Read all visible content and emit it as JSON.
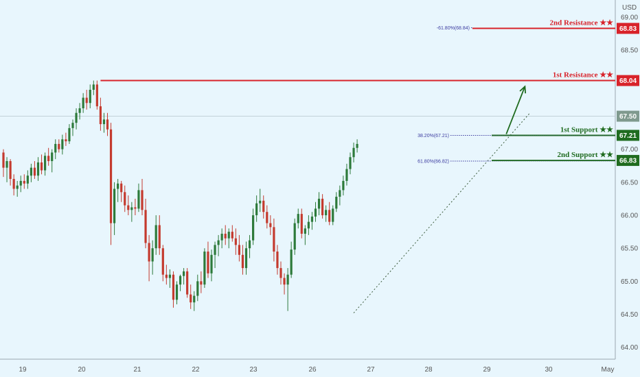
{
  "chart_data": {
    "type": "candlestick",
    "currency": "USD",
    "y_ticks": [
      "64.00",
      "64.50",
      "65.00",
      "65.50",
      "66.00",
      "66.50",
      "67.00",
      "67.50",
      "68.00",
      "68.50",
      "69.00"
    ],
    "x_labels": [
      "19",
      "20",
      "21",
      "22",
      "23",
      "26",
      "27",
      "28",
      "29",
      "30",
      "May"
    ],
    "ylim": [
      63.82,
      69.26
    ],
    "last_price": {
      "value": 67.5,
      "label": "67.50"
    },
    "levels": [
      {
        "label": "2nd Resistance ★★",
        "value": 68.83,
        "tag": "68.83",
        "color": "#d8232a",
        "fib": {
          "text": "-61.80%(68.84)",
          "value": 68.84
        }
      },
      {
        "label": "1st Resistance ★★",
        "value": 68.04,
        "tag": "68.04",
        "color": "#d8232a",
        "from_index": 28
      },
      {
        "label": "1st Support ★★",
        "value": 67.21,
        "tag": "67.21",
        "color": "#1f6b1f",
        "fib": {
          "text": "38.20%(67.21)",
          "value": 67.21
        }
      },
      {
        "label": "2nd Support ★★",
        "value": 66.83,
        "tag": "66.83",
        "color": "#1f6b1f",
        "fib": {
          "text": "61.80%(66.82)",
          "value": 66.82
        }
      }
    ],
    "trendline": {
      "from": [
        101,
        64.52
      ],
      "to": [
        152,
        67.56
      ]
    },
    "arrow": {
      "from": [
        145,
        67.23
      ],
      "to": [
        148,
        67.95
      ]
    },
    "candles": [
      [
        66.95,
        67.0,
        66.58,
        66.72
      ],
      [
        66.72,
        66.88,
        66.5,
        66.82
      ],
      [
        66.82,
        66.85,
        66.45,
        66.55
      ],
      [
        66.55,
        66.62,
        66.3,
        66.4
      ],
      [
        66.4,
        66.52,
        66.28,
        66.45
      ],
      [
        66.45,
        66.6,
        66.35,
        66.52
      ],
      [
        66.52,
        66.62,
        66.4,
        66.48
      ],
      [
        66.48,
        66.68,
        66.4,
        66.6
      ],
      [
        66.6,
        66.78,
        66.5,
        66.72
      ],
      [
        66.72,
        66.82,
        66.55,
        66.6
      ],
      [
        66.6,
        66.88,
        66.52,
        66.8
      ],
      [
        66.8,
        66.92,
        66.62,
        66.68
      ],
      [
        66.68,
        66.95,
        66.6,
        66.9
      ],
      [
        66.9,
        67.02,
        66.75,
        66.82
      ],
      [
        66.82,
        67.0,
        66.65,
        66.95
      ],
      [
        66.95,
        67.15,
        66.85,
        67.08
      ],
      [
        67.08,
        67.15,
        66.95,
        67.0
      ],
      [
        67.0,
        67.22,
        66.92,
        67.15
      ],
      [
        67.15,
        67.25,
        67.05,
        67.12
      ],
      [
        67.12,
        67.38,
        67.08,
        67.32
      ],
      [
        67.32,
        67.45,
        67.2,
        67.4
      ],
      [
        67.4,
        67.62,
        67.3,
        67.55
      ],
      [
        67.55,
        67.7,
        67.45,
        67.62
      ],
      [
        67.62,
        67.85,
        67.55,
        67.78
      ],
      [
        67.78,
        67.9,
        67.6,
        67.7
      ],
      [
        67.7,
        67.98,
        67.62,
        67.9
      ],
      [
        67.9,
        68.04,
        67.82,
        67.98
      ],
      [
        67.98,
        68.04,
        67.6,
        67.65
      ],
      [
        67.65,
        67.78,
        67.28,
        67.38
      ],
      [
        67.38,
        67.55,
        67.25,
        67.45
      ],
      [
        67.45,
        67.55,
        67.2,
        67.3
      ],
      [
        67.3,
        67.4,
        65.55,
        65.88
      ],
      [
        65.88,
        66.5,
        65.7,
        66.4
      ],
      [
        66.4,
        66.55,
        66.2,
        66.48
      ],
      [
        66.48,
        66.52,
        66.2,
        66.35
      ],
      [
        66.35,
        66.45,
        66.05,
        66.15
      ],
      [
        66.15,
        66.3,
        66.0,
        66.08
      ],
      [
        66.08,
        66.2,
        65.9,
        66.12
      ],
      [
        66.12,
        66.25,
        66.0,
        66.1
      ],
      [
        66.1,
        66.48,
        66.05,
        66.38
      ],
      [
        66.38,
        66.55,
        66.0,
        66.08
      ],
      [
        66.08,
        66.25,
        65.5,
        65.58
      ],
      [
        65.58,
        65.7,
        65.0,
        65.3
      ],
      [
        65.3,
        65.62,
        65.1,
        65.5
      ],
      [
        65.5,
        66.0,
        65.4,
        65.85
      ],
      [
        65.85,
        66.0,
        65.4,
        65.5
      ],
      [
        65.5,
        65.55,
        65.0,
        65.1
      ],
      [
        65.1,
        65.25,
        64.95,
        65.05
      ],
      [
        65.05,
        65.18,
        64.9,
        65.1
      ],
      [
        65.1,
        65.15,
        64.6,
        64.72
      ],
      [
        64.72,
        65.0,
        64.65,
        64.95
      ],
      [
        64.95,
        65.1,
        64.85,
        65.08
      ],
      [
        65.08,
        65.2,
        64.95,
        65.15
      ],
      [
        65.15,
        65.2,
        64.75,
        64.8
      ],
      [
        64.8,
        64.95,
        64.58,
        64.68
      ],
      [
        64.68,
        64.85,
        64.55,
        64.78
      ],
      [
        64.78,
        65.1,
        64.7,
        65.0
      ],
      [
        65.0,
        65.15,
        64.82,
        64.95
      ],
      [
        64.95,
        65.5,
        64.9,
        65.45
      ],
      [
        65.45,
        65.6,
        65.05,
        65.12
      ],
      [
        65.12,
        65.48,
        65.0,
        65.4
      ],
      [
        65.4,
        65.6,
        65.2,
        65.55
      ],
      [
        65.55,
        65.7,
        65.38,
        65.62
      ],
      [
        65.62,
        65.8,
        65.5,
        65.72
      ],
      [
        65.72,
        65.85,
        65.55,
        65.65
      ],
      [
        65.65,
        65.8,
        65.5,
        65.75
      ],
      [
        65.75,
        65.85,
        65.6,
        65.65
      ],
      [
        65.65,
        65.8,
        65.4,
        65.55
      ],
      [
        65.55,
        65.7,
        65.3,
        65.4
      ],
      [
        65.4,
        65.55,
        65.1,
        65.2
      ],
      [
        65.2,
        65.6,
        65.1,
        65.5
      ],
      [
        65.5,
        65.7,
        65.35,
        65.62
      ],
      [
        65.62,
        66.1,
        65.55,
        66.0
      ],
      [
        66.0,
        66.3,
        65.9,
        66.18
      ],
      [
        66.18,
        66.4,
        66.05,
        66.22
      ],
      [
        66.22,
        66.3,
        65.95,
        66.05
      ],
      [
        66.05,
        66.15,
        65.8,
        65.88
      ],
      [
        65.88,
        66.0,
        65.7,
        65.82
      ],
      [
        65.82,
        65.95,
        65.3,
        65.45
      ],
      [
        65.45,
        65.55,
        65.1,
        65.2
      ],
      [
        65.2,
        65.3,
        64.95,
        65.05
      ],
      [
        65.05,
        65.12,
        64.8,
        64.95
      ],
      [
        64.95,
        65.2,
        64.55,
        65.1
      ],
      [
        65.1,
        65.6,
        65.05,
        65.48
      ],
      [
        65.48,
        65.95,
        65.4,
        65.88
      ],
      [
        65.88,
        66.1,
        65.8,
        66.02
      ],
      [
        66.02,
        66.1,
        65.65,
        65.72
      ],
      [
        65.72,
        65.85,
        65.55,
        65.8
      ],
      [
        65.8,
        66.0,
        65.7,
        65.9
      ],
      [
        65.9,
        66.05,
        65.78,
        65.98
      ],
      [
        65.98,
        66.2,
        65.9,
        66.1
      ],
      [
        66.1,
        66.35,
        66.0,
        66.25
      ],
      [
        66.25,
        66.32,
        65.95,
        66.0
      ],
      [
        66.0,
        66.15,
        65.9,
        66.08
      ],
      [
        66.08,
        66.2,
        65.85,
        65.9
      ],
      [
        65.9,
        66.15,
        65.85,
        66.1
      ],
      [
        66.1,
        66.35,
        66.05,
        66.28
      ],
      [
        66.28,
        66.45,
        66.15,
        66.38
      ],
      [
        66.38,
        66.6,
        66.3,
        66.52
      ],
      [
        66.52,
        66.78,
        66.45,
        66.7
      ],
      [
        66.7,
        66.95,
        66.62,
        66.88
      ],
      [
        66.88,
        67.1,
        66.8,
        67.02
      ],
      [
        67.02,
        67.15,
        66.95,
        67.08
      ]
    ]
  }
}
